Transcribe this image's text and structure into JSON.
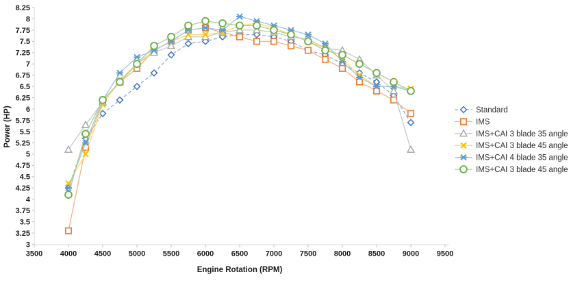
{
  "chart_data": {
    "type": "line",
    "title": "",
    "xlabel": "Engine Rotation (RPM)",
    "ylabel": "Power (HP)",
    "xlim": [
      3500,
      9500
    ],
    "ylim": [
      3,
      8.25
    ],
    "grid": false,
    "legend_position": "right",
    "x_ticks": [
      3500,
      4000,
      4500,
      5000,
      5500,
      6000,
      6500,
      7000,
      7500,
      8000,
      8500,
      9000,
      9500
    ],
    "y_ticks": [
      3,
      3.25,
      3.5,
      3.75,
      4,
      4.25,
      4.5,
      4.75,
      5,
      5.25,
      5.5,
      5.75,
      6,
      6.25,
      6.5,
      6.75,
      7,
      7.25,
      7.5,
      7.75,
      8,
      8.25
    ],
    "x": [
      4000,
      4250,
      4500,
      4750,
      5000,
      5250,
      5500,
      5750,
      6000,
      6250,
      6500,
      6750,
      7000,
      7250,
      7500,
      7750,
      8000,
      8250,
      8500,
      8750,
      9000
    ],
    "series": [
      {
        "name": "Standard",
        "color": "#4472C4",
        "line_color": "#8FAADC",
        "marker": "diamond",
        "dashed": true,
        "values": [
          4.25,
          5.35,
          5.9,
          6.2,
          6.5,
          6.8,
          7.2,
          7.45,
          7.5,
          7.6,
          7.65,
          7.65,
          7.6,
          7.5,
          7.3,
          7.2,
          7.0,
          6.8,
          6.6,
          6.3,
          5.7
        ]
      },
      {
        "name": "IMS",
        "color": "#ED7D31",
        "line_color": "#F4B183",
        "marker": "square",
        "dashed": false,
        "values": [
          3.3,
          5.15,
          6.15,
          6.6,
          6.9,
          7.3,
          7.5,
          7.75,
          7.8,
          7.7,
          7.6,
          7.5,
          7.5,
          7.4,
          7.3,
          7.1,
          6.9,
          6.6,
          6.4,
          6.2,
          5.9
        ]
      },
      {
        "name": "IMS+CAI 3 blade 35 angle",
        "color": "#A5A5A5",
        "line_color": "#C9C9C9",
        "marker": "triangle",
        "dashed": false,
        "values": [
          5.1,
          5.65,
          6.15,
          6.6,
          7.0,
          7.25,
          7.4,
          7.6,
          7.6,
          7.7,
          7.75,
          7.75,
          7.7,
          7.6,
          7.55,
          7.35,
          7.3,
          7.1,
          6.75,
          6.4,
          5.1
        ]
      },
      {
        "name": "IMS+CAI 3 blade 45 angle",
        "color": "#FFC000",
        "line_color": "#FFD966",
        "marker": "x",
        "dashed": false,
        "values": [
          4.35,
          5.0,
          6.1,
          6.65,
          7.0,
          7.3,
          7.5,
          7.65,
          7.65,
          7.7,
          7.85,
          7.9,
          7.8,
          7.65,
          7.5,
          7.35,
          7.1,
          6.75,
          6.5,
          6.5,
          6.45
        ]
      },
      {
        "name": "IMS+CAI 4 blade 35 angle",
        "color": "#5B9BD5",
        "line_color": "#9DC3E6",
        "marker": "star",
        "dashed": false,
        "values": [
          4.25,
          5.25,
          6.2,
          6.8,
          7.15,
          7.3,
          7.5,
          7.75,
          7.8,
          7.75,
          8.05,
          7.95,
          7.85,
          7.75,
          7.65,
          7.45,
          7.05,
          6.7,
          6.5,
          6.5,
          6.4
        ]
      },
      {
        "name": "IMS+CAI 3 blade 45 angle",
        "color": "#70AD47",
        "line_color": "#A9D18E",
        "marker": "circle",
        "dashed": false,
        "values": [
          4.1,
          5.45,
          6.2,
          6.6,
          7.0,
          7.4,
          7.6,
          7.85,
          7.95,
          7.9,
          7.85,
          7.85,
          7.75,
          7.65,
          7.5,
          7.3,
          7.2,
          7.0,
          6.8,
          6.6,
          6.4
        ]
      }
    ],
    "axis_color": "#D9D9D9",
    "tick_color": "#BFBFBF"
  }
}
